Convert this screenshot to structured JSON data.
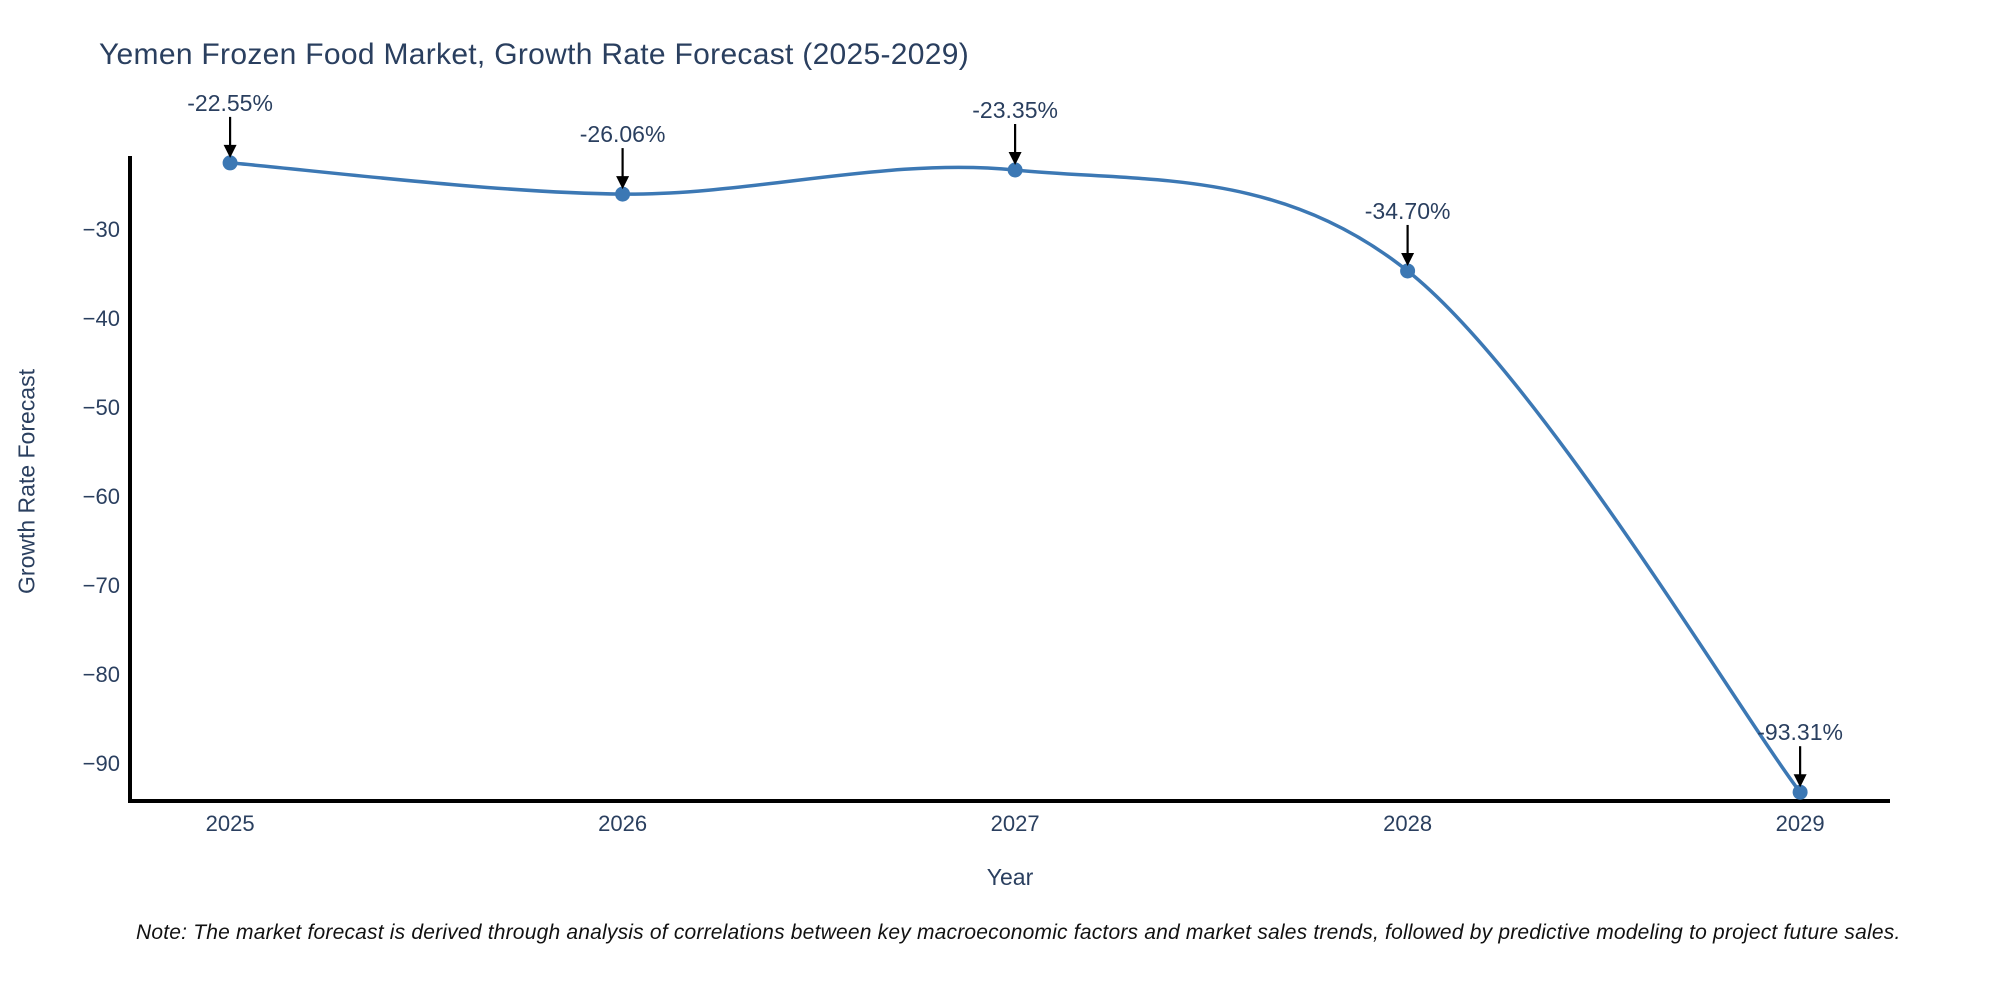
{
  "title": "Yemen Frozen Food Market, Growth Rate Forecast (2025-2029)",
  "note": "Note: The market forecast is derived through analysis of correlations between key macroeconomic factors and market sales trends, followed by predictive modeling to project future sales.",
  "chart_data": {
    "type": "line",
    "title": "Yemen Frozen Food Market, Growth Rate Forecast (2025-2029)",
    "xlabel": "Year",
    "ylabel": "Growth Rate Forecast",
    "x": [
      2025,
      2026,
      2027,
      2028,
      2029
    ],
    "values": [
      -22.55,
      -26.06,
      -23.35,
      -34.7,
      -93.31
    ],
    "point_labels": [
      "-22.55%",
      "-26.06%",
      "-23.35%",
      "-34.70%",
      "-93.31%"
    ],
    "xticklabels": [
      "2025",
      "2026",
      "2027",
      "2028",
      "2029"
    ],
    "yticks": [
      -30,
      -40,
      -50,
      -60,
      -70,
      -80,
      -90
    ],
    "xlim": [
      2024.745,
      2029.229
    ],
    "ylim": [
      -94.3,
      -22.0
    ],
    "curve": "spline",
    "grid": false,
    "legend": "none",
    "line_color": "#3c78b4",
    "marker_color": "#3c78b4",
    "axis_color": "#000000",
    "annotation_color": "#2a3f5f",
    "arrow_color": "#000000",
    "background": "#ffffff"
  }
}
